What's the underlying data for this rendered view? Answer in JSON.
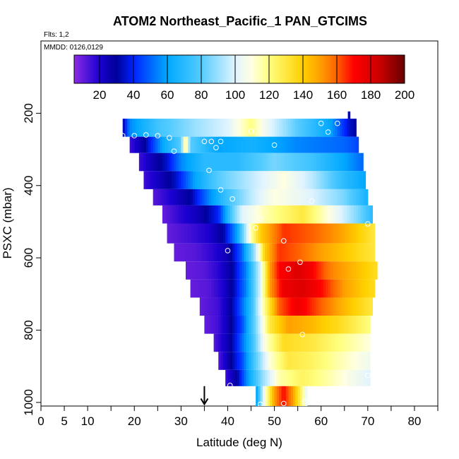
{
  "chart_data": {
    "type": "heatmap",
    "title": "ATOM2 Northeast_Pacific_1 PAN_GTCIMS",
    "flights_label": "Flts: 1,2",
    "mmdd_label": "MMDD: 0126,0129",
    "xlabel": "Latitude (deg N)",
    "ylabel": "PSXC (mbar)",
    "xlim": [
      0,
      85
    ],
    "ylim": [
      1010,
      0
    ],
    "x_ticks": [
      0,
      5,
      10,
      20,
      30,
      40,
      50,
      60,
      70,
      80
    ],
    "x_tick_labels": [
      "0",
      "5",
      "10",
      "20",
      "30",
      "40",
      "50",
      "60",
      "70",
      "80"
    ],
    "x_minor_ticks": [
      15,
      25,
      35,
      45,
      55,
      65,
      75,
      85
    ],
    "y_ticks": [
      200,
      400,
      600,
      800,
      1000
    ],
    "y_tick_labels": [
      "200",
      "400",
      "600",
      "800",
      "1000"
    ],
    "colorbar": {
      "min": 5,
      "max": 200,
      "ticks": [
        20,
        40,
        60,
        80,
        100,
        120,
        140,
        160,
        180,
        200
      ],
      "tick_labels": [
        "20",
        "40",
        "60",
        "80",
        "100",
        "120",
        "140",
        "160",
        "180",
        "200"
      ],
      "stops": [
        [
          5,
          "#8b2be2"
        ],
        [
          20,
          "#1a00d0"
        ],
        [
          30,
          "#000099"
        ],
        [
          40,
          "#0022ff"
        ],
        [
          60,
          "#00a8ff"
        ],
        [
          80,
          "#55ccff"
        ],
        [
          100,
          "#e0f4ff"
        ],
        [
          110,
          "#ffffe0"
        ],
        [
          120,
          "#ffff80"
        ],
        [
          140,
          "#ffd000"
        ],
        [
          150,
          "#ffa000"
        ],
        [
          160,
          "#ff6000"
        ],
        [
          170,
          "#ff0000"
        ],
        [
          185,
          "#cc0000"
        ],
        [
          200,
          "#660000"
        ]
      ]
    },
    "rows": [
      {
        "p_top": 215,
        "p_bot": 265,
        "lat_start": 17.5,
        "lat_end": 67.5,
        "values": [
          [
            17.5,
            30
          ],
          [
            19,
            55
          ],
          [
            25,
            75
          ],
          [
            33,
            90
          ],
          [
            40,
            100
          ],
          [
            45,
            120
          ],
          [
            48,
            105
          ],
          [
            55,
            80
          ],
          [
            62,
            60
          ],
          [
            66,
            35
          ],
          [
            67.5,
            30
          ]
        ]
      },
      {
        "p_top": 265,
        "p_bot": 310,
        "lat_start": 19,
        "lat_end": 68,
        "values": [
          [
            19,
            15
          ],
          [
            22,
            28
          ],
          [
            26,
            60
          ],
          [
            30,
            80
          ],
          [
            31,
            125
          ],
          [
            32,
            80
          ],
          [
            38,
            60
          ],
          [
            45,
            65
          ],
          [
            55,
            55
          ],
          [
            65,
            50
          ],
          [
            68,
            45
          ]
        ]
      },
      {
        "p_top": 310,
        "p_bot": 360,
        "lat_start": 21,
        "lat_end": 69,
        "values": [
          [
            21,
            15
          ],
          [
            24,
            25
          ],
          [
            27,
            35
          ],
          [
            30,
            55
          ],
          [
            35,
            70
          ],
          [
            42,
            70
          ],
          [
            50,
            85
          ],
          [
            58,
            75
          ],
          [
            65,
            60
          ],
          [
            69,
            50
          ]
        ]
      },
      {
        "p_top": 360,
        "p_bot": 410,
        "lat_start": 22,
        "lat_end": 69.5,
        "values": [
          [
            22,
            15
          ],
          [
            26,
            25
          ],
          [
            29,
            35
          ],
          [
            33,
            60
          ],
          [
            38,
            80
          ],
          [
            45,
            95
          ],
          [
            52,
            110
          ],
          [
            58,
            95
          ],
          [
            65,
            70
          ],
          [
            69.5,
            60
          ]
        ]
      },
      {
        "p_top": 410,
        "p_bot": 455,
        "lat_start": 24,
        "lat_end": 70,
        "values": [
          [
            24,
            12
          ],
          [
            28,
            20
          ],
          [
            32,
            30
          ],
          [
            36,
            55
          ],
          [
            40,
            75
          ],
          [
            45,
            95
          ],
          [
            50,
            110
          ],
          [
            58,
            100
          ],
          [
            65,
            85
          ],
          [
            70,
            65
          ]
        ]
      },
      {
        "p_top": 455,
        "p_bot": 505,
        "lat_start": 26,
        "lat_end": 71,
        "values": [
          [
            26,
            10
          ],
          [
            30,
            18
          ],
          [
            34,
            25
          ],
          [
            38,
            40
          ],
          [
            41,
            80
          ],
          [
            43,
            100
          ],
          [
            48,
            115
          ],
          [
            56,
            130
          ],
          [
            63,
            105
          ],
          [
            68,
            85
          ],
          [
            71,
            70
          ]
        ]
      },
      {
        "p_top": 505,
        "p_bot": 560,
        "lat_start": 27,
        "lat_end": 71.5,
        "values": [
          [
            27,
            10
          ],
          [
            32,
            15
          ],
          [
            36,
            20
          ],
          [
            39,
            30
          ],
          [
            42,
            60
          ],
          [
            45,
            115
          ],
          [
            47,
            140
          ],
          [
            52,
            165
          ],
          [
            58,
            160
          ],
          [
            64,
            150
          ],
          [
            68,
            140
          ],
          [
            71.5,
            130
          ]
        ]
      },
      {
        "p_top": 560,
        "p_bot": 610,
        "lat_start": 28.5,
        "lat_end": 71.5,
        "values": [
          [
            28.5,
            10
          ],
          [
            33,
            12
          ],
          [
            37,
            18
          ],
          [
            40,
            25
          ],
          [
            43,
            50
          ],
          [
            46,
            95
          ],
          [
            48,
            140
          ],
          [
            51,
            165
          ],
          [
            55,
            160
          ],
          [
            60,
            150
          ],
          [
            66,
            140
          ],
          [
            71.5,
            130
          ]
        ]
      },
      {
        "p_top": 610,
        "p_bot": 660,
        "lat_start": 31,
        "lat_end": 72,
        "values": [
          [
            31,
            10
          ],
          [
            35,
            12
          ],
          [
            38,
            18
          ],
          [
            41,
            30
          ],
          [
            44,
            55
          ],
          [
            47,
            100
          ],
          [
            49,
            150
          ],
          [
            51,
            170
          ],
          [
            55,
            180
          ],
          [
            58,
            172
          ],
          [
            62,
            155
          ],
          [
            67,
            145
          ],
          [
            72,
            135
          ]
        ]
      },
      {
        "p_top": 660,
        "p_bot": 710,
        "lat_start": 32,
        "lat_end": 71.5,
        "values": [
          [
            32,
            10
          ],
          [
            36,
            12
          ],
          [
            39,
            20
          ],
          [
            41,
            30
          ],
          [
            44,
            55
          ],
          [
            47,
            100
          ],
          [
            49,
            150
          ],
          [
            52,
            175
          ],
          [
            56,
            180
          ],
          [
            60,
            170
          ],
          [
            65,
            150
          ],
          [
            71.5,
            135
          ]
        ]
      },
      {
        "p_top": 710,
        "p_bot": 760,
        "lat_start": 34,
        "lat_end": 71,
        "values": [
          [
            34,
            10
          ],
          [
            38,
            15
          ],
          [
            40,
            25
          ],
          [
            42,
            40
          ],
          [
            45,
            70
          ],
          [
            48,
            120
          ],
          [
            51,
            160
          ],
          [
            55,
            175
          ],
          [
            60,
            160
          ],
          [
            65,
            145
          ],
          [
            71,
            130
          ]
        ]
      },
      {
        "p_top": 760,
        "p_bot": 810,
        "lat_start": 35,
        "lat_end": 70.5,
        "values": [
          [
            35,
            10
          ],
          [
            38,
            15
          ],
          [
            40,
            25
          ],
          [
            43,
            45
          ],
          [
            46,
            85
          ],
          [
            49,
            130
          ],
          [
            53,
            150
          ],
          [
            58,
            145
          ],
          [
            64,
            135
          ],
          [
            70.5,
            120
          ]
        ]
      },
      {
        "p_top": 810,
        "p_bot": 860,
        "lat_start": 37,
        "lat_end": 70.5,
        "values": [
          [
            37,
            12
          ],
          [
            40,
            25
          ],
          [
            42,
            40
          ],
          [
            45,
            70
          ],
          [
            48,
            110
          ],
          [
            52,
            135
          ],
          [
            58,
            130
          ],
          [
            64,
            120
          ],
          [
            70.5,
            110
          ]
        ]
      },
      {
        "p_top": 860,
        "p_bot": 910,
        "lat_start": 38,
        "lat_end": 70.5,
        "values": [
          [
            38,
            12
          ],
          [
            40,
            25
          ],
          [
            43,
            45
          ],
          [
            46,
            80
          ],
          [
            49,
            110
          ],
          [
            53,
            130
          ],
          [
            58,
            125
          ],
          [
            64,
            115
          ],
          [
            70.5,
            105
          ]
        ]
      },
      {
        "p_top": 910,
        "p_bot": 955,
        "lat_start": 39.5,
        "lat_end": 70.5,
        "values": [
          [
            39.5,
            15
          ],
          [
            42,
            30
          ],
          [
            44,
            55
          ],
          [
            47,
            85
          ],
          [
            51,
            115
          ],
          [
            56,
            125
          ],
          [
            62,
            115
          ],
          [
            70.5,
            100
          ]
        ]
      },
      {
        "p_top": 955,
        "p_bot": 1010,
        "lat_start": 46,
        "lat_end": 57,
        "values": [
          [
            46,
            55
          ],
          [
            48,
            110
          ],
          [
            50,
            150
          ],
          [
            52,
            170
          ],
          [
            54,
            150
          ],
          [
            56,
            120
          ],
          [
            57,
            100
          ]
        ]
      }
    ],
    "flight_points": [
      [
        17.5,
        262
      ],
      [
        20,
        262
      ],
      [
        22.5,
        260
      ],
      [
        25,
        262
      ],
      [
        27.5,
        268
      ],
      [
        28.5,
        305
      ],
      [
        35,
        278
      ],
      [
        36.5,
        278
      ],
      [
        38.5,
        278
      ],
      [
        37.5,
        295
      ],
      [
        45,
        250
      ],
      [
        50,
        288
      ],
      [
        60,
        228
      ],
      [
        61.5,
        252
      ],
      [
        63.5,
        228
      ],
      [
        36,
        358
      ],
      [
        38.5,
        412
      ],
      [
        41,
        437
      ],
      [
        47,
        492
      ],
      [
        58,
        443
      ],
      [
        70,
        506
      ],
      [
        46,
        517
      ],
      [
        52,
        553
      ],
      [
        40,
        580
      ],
      [
        55.5,
        612
      ],
      [
        53,
        631
      ],
      [
        56,
        812
      ],
      [
        70,
        925
      ],
      [
        40.5,
        953
      ],
      [
        47,
        1005
      ],
      [
        52,
        1003
      ],
      [
        56.5,
        997
      ]
    ],
    "markers": {
      "top_flag": {
        "lat": 66,
        "p_from": 195,
        "p_to": 215
      },
      "bottom_arrow": {
        "lat": 35,
        "p_from": 955,
        "p_to": 1005
      }
    }
  }
}
